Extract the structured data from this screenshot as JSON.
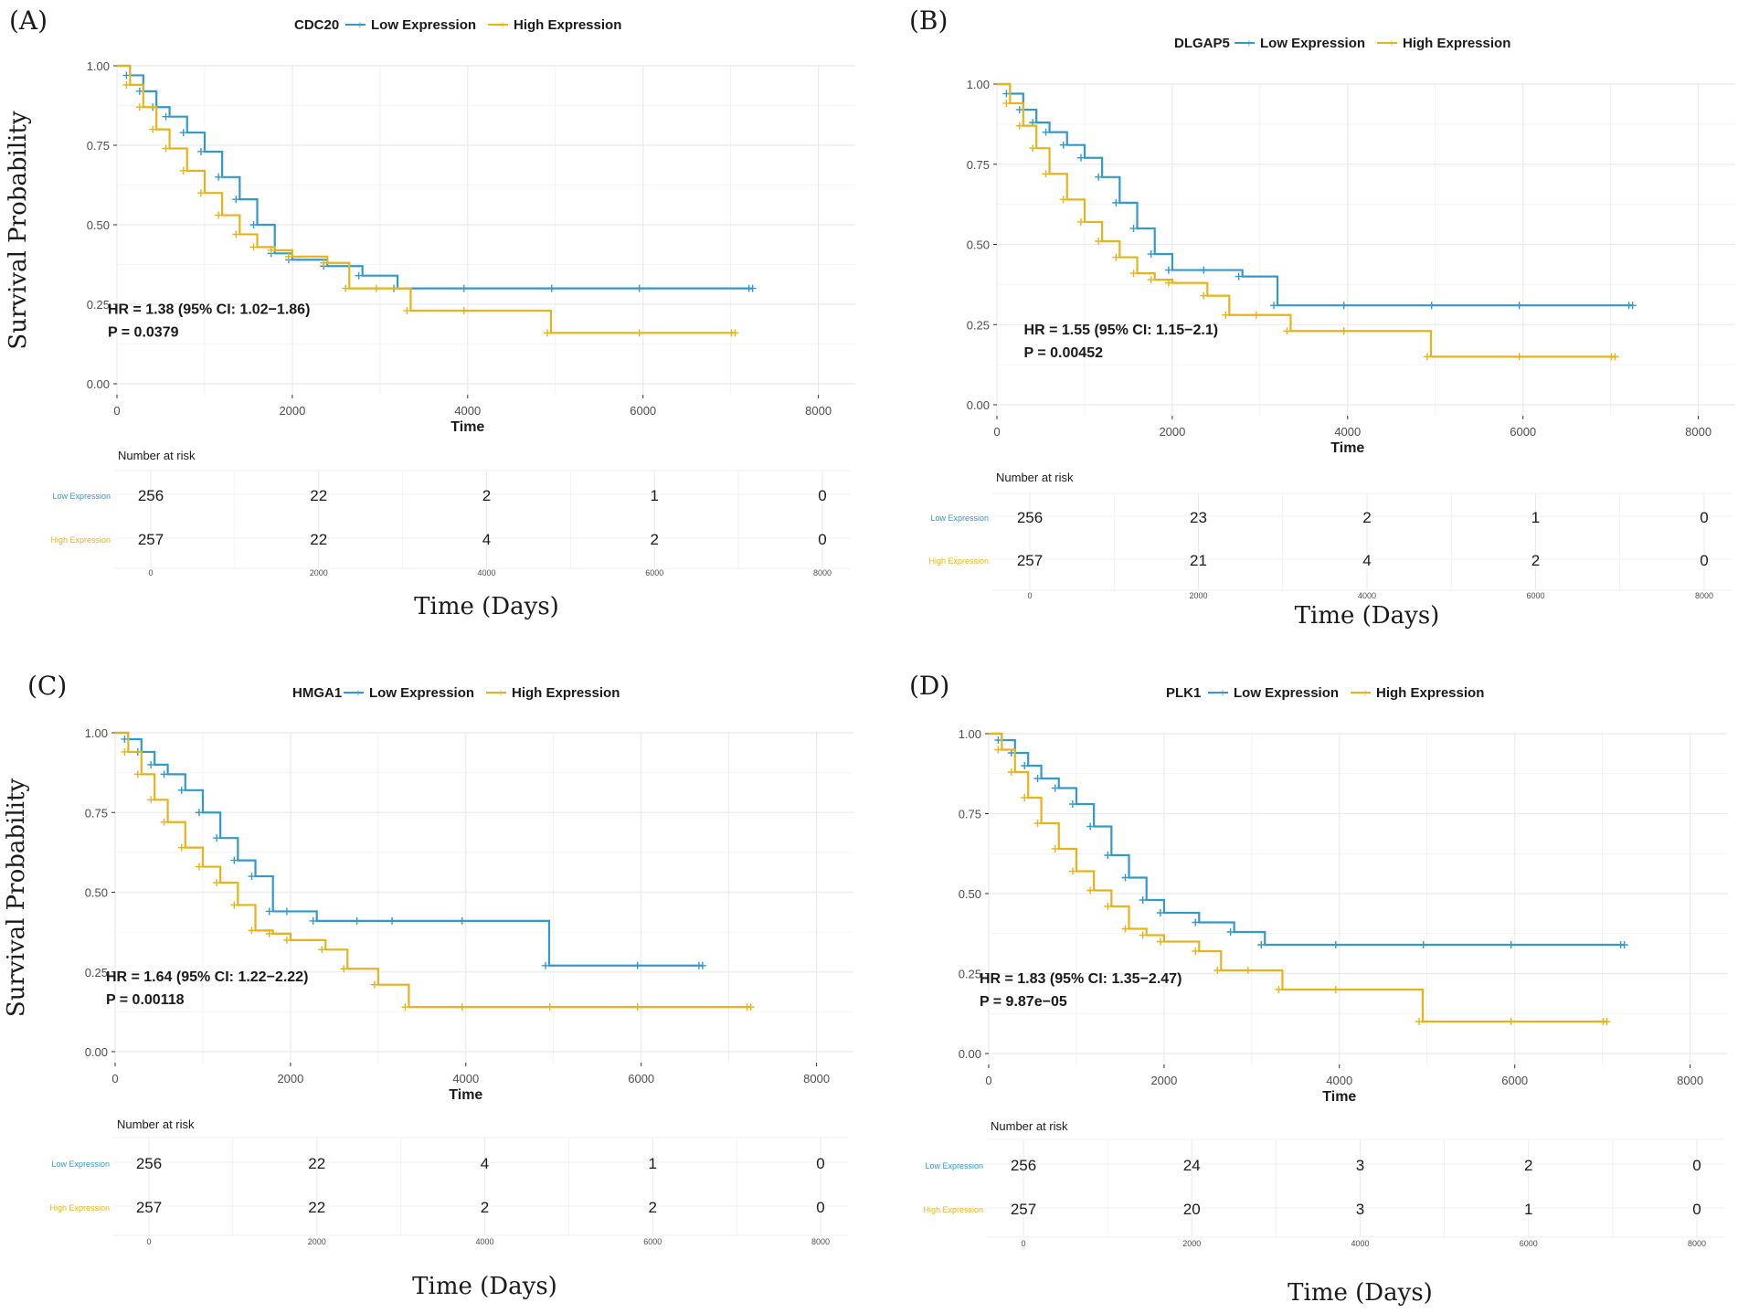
{
  "colors": {
    "low": "#3399cc",
    "high": "#e6b41a",
    "grid": "#ebebeb",
    "text": "#1a1a1a",
    "axis_text": "#4d4d4d"
  },
  "chart_data": [
    {
      "panel": "(A)",
      "type": "line",
      "gene": "CDC20",
      "legend": [
        "Low Expression",
        "High Expression"
      ],
      "xlabel": "Time",
      "ylabel": "Survival Probability",
      "xlim": [
        0,
        8000
      ],
      "ylim": [
        0,
        1
      ],
      "xticks": [
        "0",
        "2000",
        "4000",
        "6000",
        "8000"
      ],
      "yticks": [
        "0.00",
        "0.25",
        "0.50",
        "0.75",
        "1.00"
      ],
      "hr_text": "HR = 1.38 (95% CI: 1.02−1.86)",
      "p_text": "P = 0.0379",
      "series": [
        {
          "name": "Low Expression",
          "x": [
            0,
            150,
            300,
            450,
            600,
            800,
            1000,
            1200,
            1400,
            1600,
            1800,
            2000,
            2400,
            2800,
            3200,
            4000,
            5000,
            6000,
            7250
          ],
          "y": [
            1.0,
            0.97,
            0.92,
            0.87,
            0.84,
            0.79,
            0.73,
            0.65,
            0.58,
            0.5,
            0.41,
            0.39,
            0.37,
            0.34,
            0.3,
            0.3,
            0.3,
            0.3,
            0.3
          ]
        },
        {
          "name": "High Expression",
          "x": [
            0,
            150,
            300,
            450,
            600,
            800,
            1000,
            1200,
            1400,
            1600,
            1800,
            2000,
            2400,
            2650,
            3000,
            3350,
            4000,
            4950,
            6000,
            7050
          ],
          "y": [
            1.0,
            0.94,
            0.87,
            0.8,
            0.74,
            0.67,
            0.6,
            0.53,
            0.47,
            0.43,
            0.42,
            0.4,
            0.38,
            0.3,
            0.3,
            0.23,
            0.23,
            0.16,
            0.16,
            0.16
          ]
        }
      ],
      "risk_table": {
        "title": "Number at risk",
        "labels": [
          "Low Expression",
          "High Expression"
        ],
        "low": [
          "256",
          "22",
          "2",
          "1",
          "0"
        ],
        "high": [
          "257",
          "22",
          "4",
          "2",
          "0"
        ],
        "xticks": [
          "0",
          "2000",
          "4000",
          "6000",
          "8000"
        ],
        "xlabel": "Time (Days)"
      }
    },
    {
      "panel": "(B)",
      "type": "line",
      "gene": "DLGAP5",
      "legend": [
        "Low Expression",
        "High Expression"
      ],
      "xlabel": "Time",
      "ylabel": "",
      "xlim": [
        0,
        8000
      ],
      "ylim": [
        0,
        1
      ],
      "xticks": [
        "0",
        "2000",
        "4000",
        "6000",
        "8000"
      ],
      "yticks": [
        "0.00",
        "0.25",
        "0.50",
        "0.75",
        "1.00"
      ],
      "hr_text": "HR = 1.55 (95% CI: 1.15−2.1)",
      "p_text": "P = 0.00452",
      "series": [
        {
          "name": "Low Expression",
          "x": [
            0,
            150,
            300,
            450,
            600,
            800,
            1000,
            1200,
            1400,
            1600,
            1800,
            2000,
            2400,
            2800,
            3200,
            4000,
            5000,
            6000,
            7250
          ],
          "y": [
            1.0,
            0.97,
            0.92,
            0.88,
            0.85,
            0.81,
            0.77,
            0.71,
            0.63,
            0.55,
            0.47,
            0.42,
            0.42,
            0.4,
            0.31,
            0.31,
            0.31,
            0.31,
            0.31
          ]
        },
        {
          "name": "High Expression",
          "x": [
            0,
            150,
            300,
            450,
            600,
            800,
            1000,
            1200,
            1400,
            1600,
            1800,
            2000,
            2400,
            2650,
            3000,
            3350,
            4000,
            4950,
            6000,
            7050
          ],
          "y": [
            1.0,
            0.94,
            0.87,
            0.8,
            0.72,
            0.64,
            0.57,
            0.51,
            0.46,
            0.41,
            0.39,
            0.38,
            0.34,
            0.28,
            0.28,
            0.23,
            0.23,
            0.15,
            0.15,
            0.15
          ]
        }
      ],
      "risk_table": {
        "title": "Number at risk",
        "labels": [
          "Low Expression",
          "High Expression"
        ],
        "low": [
          "256",
          "23",
          "2",
          "1",
          "0"
        ],
        "high": [
          "257",
          "21",
          "4",
          "2",
          "0"
        ],
        "xticks": [
          "0",
          "2000",
          "4000",
          "6000",
          "8000"
        ],
        "xlabel": "Time (Days)"
      }
    },
    {
      "panel": "(C)",
      "type": "line",
      "gene": "HMGA1",
      "legend": [
        "Low Expression",
        "High Expression"
      ],
      "xlabel": "Time",
      "ylabel": "Survival Probability",
      "xlim": [
        0,
        8000
      ],
      "ylim": [
        0,
        1
      ],
      "xticks": [
        "0",
        "2000",
        "4000",
        "6000",
        "8000"
      ],
      "yticks": [
        "0.00",
        "0.25",
        "0.50",
        "0.75",
        "1.00"
      ],
      "hr_text": "HR = 1.64 (95% CI: 1.22−2.22)",
      "p_text": "P = 0.00118",
      "series": [
        {
          "name": "Low Expression",
          "x": [
            0,
            150,
            300,
            450,
            600,
            800,
            1000,
            1200,
            1400,
            1600,
            1800,
            2000,
            2300,
            2800,
            3200,
            4000,
            4950,
            6000,
            6700
          ],
          "y": [
            1.0,
            0.98,
            0.94,
            0.9,
            0.87,
            0.82,
            0.75,
            0.67,
            0.6,
            0.55,
            0.44,
            0.44,
            0.41,
            0.41,
            0.41,
            0.41,
            0.27,
            0.27,
            0.27
          ]
        },
        {
          "name": "High Expression",
          "x": [
            0,
            150,
            300,
            450,
            600,
            800,
            1000,
            1200,
            1400,
            1600,
            1800,
            2000,
            2400,
            2650,
            3000,
            3350,
            4000,
            5000,
            6000,
            7250
          ],
          "y": [
            1.0,
            0.94,
            0.87,
            0.79,
            0.72,
            0.64,
            0.58,
            0.53,
            0.46,
            0.38,
            0.37,
            0.35,
            0.32,
            0.26,
            0.21,
            0.14,
            0.14,
            0.14,
            0.14,
            0.14
          ]
        }
      ],
      "risk_table": {
        "title": "Number at risk",
        "labels": [
          "Low Expression",
          "High Expression"
        ],
        "low": [
          "256",
          "22",
          "4",
          "1",
          "0"
        ],
        "high": [
          "257",
          "22",
          "2",
          "2",
          "0"
        ],
        "xticks": [
          "0",
          "2000",
          "4000",
          "6000",
          "8000"
        ],
        "xlabel": "Time (Days)"
      }
    },
    {
      "panel": "(D)",
      "type": "line",
      "gene": "PLK1",
      "legend": [
        "Low Expression",
        "High Expression"
      ],
      "xlabel": "Time",
      "ylabel": "",
      "xlim": [
        0,
        8000
      ],
      "ylim": [
        0,
        1
      ],
      "xticks": [
        "0",
        "2000",
        "4000",
        "6000",
        "8000"
      ],
      "yticks": [
        "0.00",
        "0.25",
        "0.50",
        "0.75",
        "1.00"
      ],
      "hr_text": "HR = 1.83 (95% CI: 1.35−2.47)",
      "p_text": "P = 9.87e−05",
      "series": [
        {
          "name": "Low Expression",
          "x": [
            0,
            150,
            300,
            450,
            600,
            800,
            1000,
            1200,
            1400,
            1600,
            1800,
            2000,
            2400,
            2800,
            3150,
            4000,
            5000,
            6000,
            7250
          ],
          "y": [
            1.0,
            0.98,
            0.94,
            0.9,
            0.86,
            0.83,
            0.78,
            0.71,
            0.62,
            0.55,
            0.48,
            0.44,
            0.41,
            0.38,
            0.34,
            0.34,
            0.34,
            0.34,
            0.34
          ]
        },
        {
          "name": "High Expression",
          "x": [
            0,
            150,
            300,
            450,
            600,
            800,
            1000,
            1200,
            1400,
            1600,
            1800,
            2000,
            2400,
            2650,
            3000,
            3350,
            4000,
            4950,
            6000,
            7050
          ],
          "y": [
            1.0,
            0.95,
            0.88,
            0.8,
            0.72,
            0.64,
            0.57,
            0.51,
            0.46,
            0.39,
            0.37,
            0.35,
            0.32,
            0.26,
            0.26,
            0.2,
            0.2,
            0.1,
            0.1,
            0.1
          ]
        }
      ],
      "risk_table": {
        "title": "Number at risk",
        "labels": [
          "Low Expression",
          "High Expression"
        ],
        "low": [
          "256",
          "24",
          "3",
          "2",
          "0"
        ],
        "high": [
          "257",
          "20",
          "3",
          "1",
          "0"
        ],
        "xticks": [
          "0",
          "2000",
          "4000",
          "6000",
          "8000"
        ],
        "xlabel": "Time (Days)"
      }
    }
  ]
}
